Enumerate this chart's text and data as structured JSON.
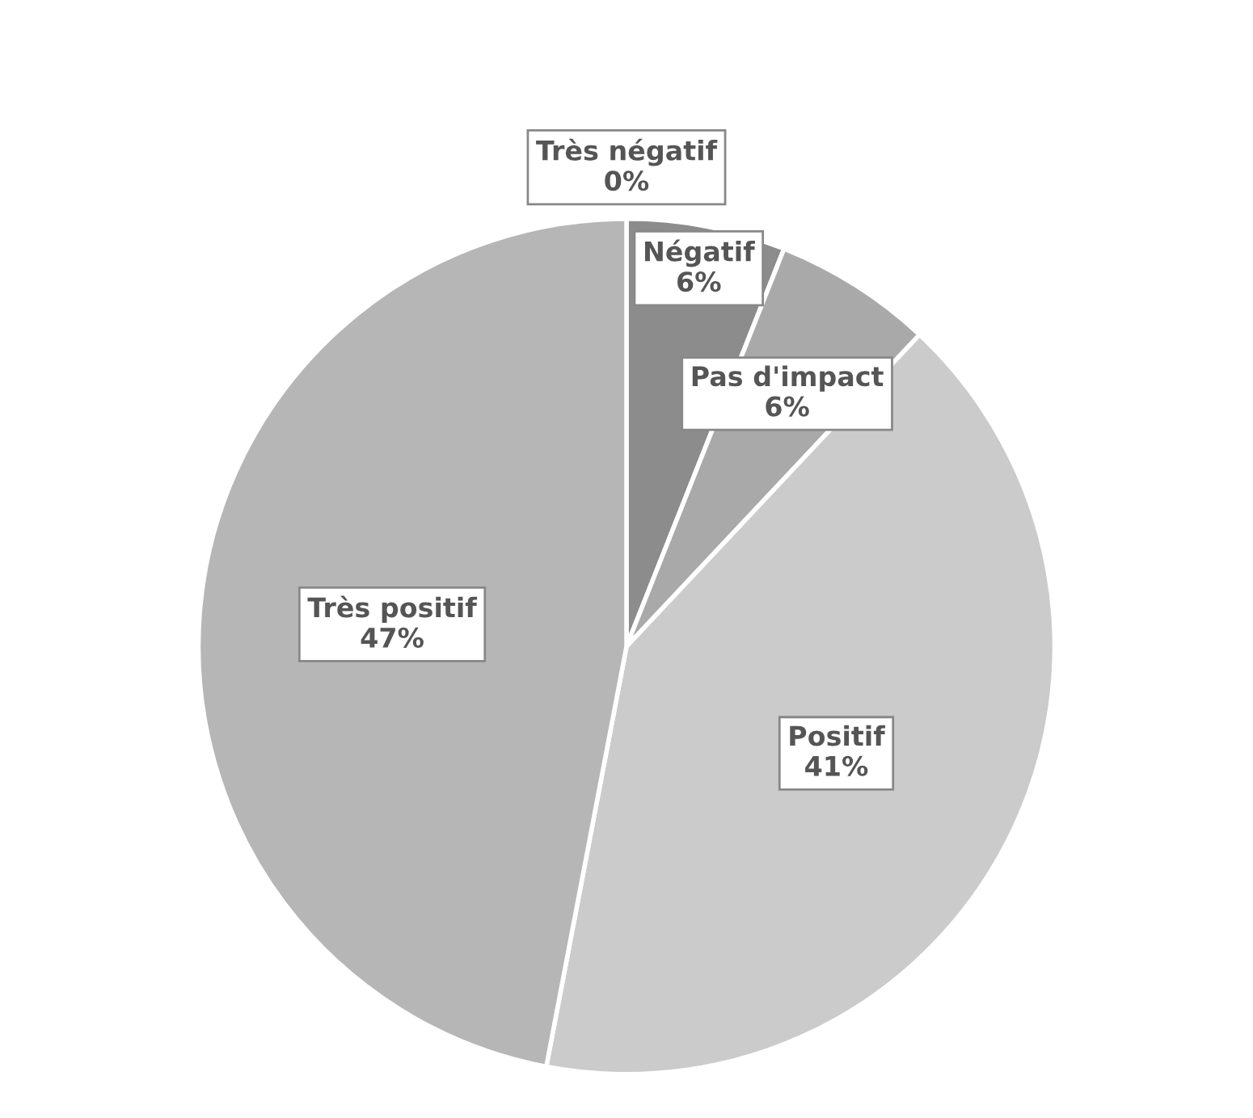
{
  "chart_data": {
    "type": "pie",
    "categories": [
      "Très négatif",
      "Négatif",
      "Pas d'impact",
      "Positif",
      "Très positif"
    ],
    "values": [
      0,
      6,
      6,
      41,
      47
    ],
    "colors": [
      "#ffffff",
      "#8c8c8c",
      "#a9a9a9",
      "#cbcbcb",
      "#b6b6b6"
    ],
    "value_labels": [
      "0%",
      "6%",
      "6%",
      "41%",
      "47%"
    ],
    "legend": false
  }
}
